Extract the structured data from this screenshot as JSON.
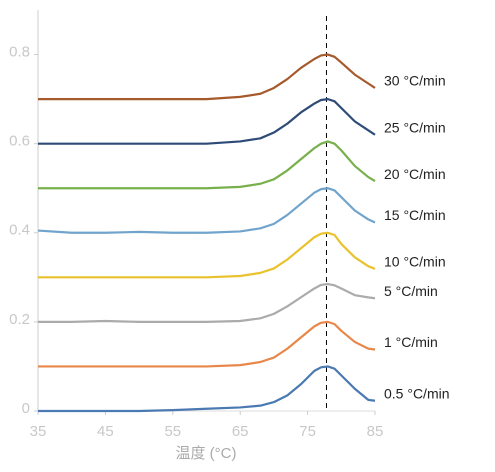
{
  "chart_data": {
    "type": "line",
    "x_label": "温度 (°C)",
    "x": [
      35,
      40,
      45,
      50,
      55,
      60,
      65,
      68,
      70,
      72,
      74,
      76,
      77,
      78,
      79,
      80,
      82,
      84,
      85
    ],
    "xlim": [
      35,
      85
    ],
    "xticks": [
      35,
      45,
      55,
      65,
      75,
      85
    ],
    "ylim": [
      0,
      0.9
    ],
    "yticks": [
      0,
      0.2,
      0.4,
      0.6,
      0.8
    ],
    "vline": 77.8,
    "series": [
      {
        "name": "30 °C/min",
        "color": "#a65a2c",
        "values": [
          0.7,
          0.7,
          0.7,
          0.7,
          0.7,
          0.7,
          0.705,
          0.712,
          0.725,
          0.745,
          0.77,
          0.79,
          0.798,
          0.8,
          0.795,
          0.782,
          0.755,
          0.735,
          0.725
        ]
      },
      {
        "name": "25 °C/min",
        "color": "#2e4b78",
        "values": [
          0.6,
          0.6,
          0.6,
          0.6,
          0.6,
          0.6,
          0.605,
          0.612,
          0.625,
          0.645,
          0.67,
          0.69,
          0.698,
          0.7,
          0.695,
          0.68,
          0.65,
          0.63,
          0.62
        ]
      },
      {
        "name": "20 °C/min",
        "color": "#78b04c",
        "values": [
          0.5,
          0.5,
          0.5,
          0.5,
          0.5,
          0.5,
          0.503,
          0.51,
          0.52,
          0.54,
          0.565,
          0.59,
          0.6,
          0.605,
          0.6,
          0.585,
          0.55,
          0.525,
          0.516
        ]
      },
      {
        "name": "15 °C/min",
        "color": "#70a4cc",
        "values": [
          0.405,
          0.4,
          0.4,
          0.402,
          0.4,
          0.4,
          0.403,
          0.41,
          0.42,
          0.44,
          0.465,
          0.49,
          0.498,
          0.5,
          0.495,
          0.48,
          0.45,
          0.43,
          0.423
        ]
      },
      {
        "name": "10 °C/min",
        "color": "#e9c22e",
        "values": [
          0.3,
          0.3,
          0.3,
          0.3,
          0.3,
          0.3,
          0.303,
          0.31,
          0.32,
          0.34,
          0.365,
          0.39,
          0.398,
          0.4,
          0.395,
          0.375,
          0.345,
          0.325,
          0.319
        ]
      },
      {
        "name": "5 °C/min",
        "color": "#ababab",
        "values": [
          0.2,
          0.2,
          0.202,
          0.2,
          0.2,
          0.2,
          0.202,
          0.208,
          0.218,
          0.235,
          0.255,
          0.275,
          0.283,
          0.285,
          0.282,
          0.275,
          0.26,
          0.255,
          0.253
        ]
      },
      {
        "name": "1 °C/min",
        "color": "#e8874a",
        "values": [
          0.1,
          0.1,
          0.1,
          0.1,
          0.1,
          0.1,
          0.103,
          0.11,
          0.12,
          0.14,
          0.165,
          0.19,
          0.198,
          0.2,
          0.195,
          0.18,
          0.155,
          0.14,
          0.138
        ]
      },
      {
        "name": "0.5 °C/min",
        "color": "#4b79b1",
        "values": [
          0.0,
          0.0,
          0.0,
          0.0,
          0.002,
          0.005,
          0.008,
          0.012,
          0.02,
          0.035,
          0.06,
          0.09,
          0.098,
          0.1,
          0.095,
          0.08,
          0.05,
          0.025,
          0.023
        ]
      }
    ]
  }
}
